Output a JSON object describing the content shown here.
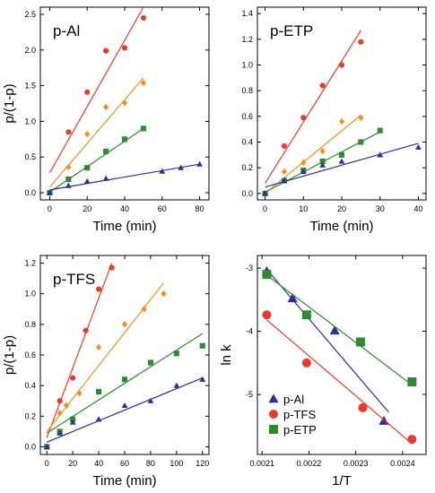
{
  "colors": {
    "p-Al_red": "#e8392b",
    "orange": "#f0901e",
    "green": "#2e8b2e",
    "blue": "#2e2e9a",
    "red": "#e8392b"
  },
  "chart_data": [
    {
      "type": "scatter",
      "panel_title": "p-Al",
      "xlabel": "Time (min)",
      "ylabel": "p/(1-p)",
      "xlim": [
        -5,
        85
      ],
      "ylim": [
        -0.1,
        2.6
      ],
      "xticks": [
        0,
        20,
        40,
        60,
        80
      ],
      "yticks": [
        0.0,
        0.5,
        1.0,
        1.5,
        2.0,
        2.5
      ],
      "ytick_labels": [
        "0.0",
        "0.5",
        "1.0",
        "1.5",
        "2.0",
        "2.5"
      ],
      "series": [
        {
          "color": "#e8392b",
          "marker": "circle",
          "x": [
            0,
            10,
            20,
            30,
            40,
            50
          ],
          "y": [
            0.0,
            0.85,
            1.41,
            1.99,
            2.03,
            2.45
          ],
          "fit": [
            [
              0,
              0.28
            ],
            [
              50,
              2.6
            ]
          ]
        },
        {
          "color": "#f0901e",
          "marker": "diamond",
          "x": [
            0,
            10,
            20,
            30,
            40,
            50
          ],
          "y": [
            0.0,
            0.36,
            0.82,
            1.2,
            1.26,
            1.54
          ],
          "fit": [
            [
              0,
              0.08
            ],
            [
              50,
              1.61
            ]
          ]
        },
        {
          "color": "#2e8b2e",
          "marker": "square",
          "x": [
            0,
            10,
            20,
            30,
            40,
            50
          ],
          "y": [
            0.0,
            0.19,
            0.35,
            0.58,
            0.75,
            0.9
          ],
          "fit": [
            [
              0,
              0.01
            ],
            [
              50,
              0.9
            ]
          ]
        },
        {
          "color": "#2e2e9a",
          "marker": "triangle",
          "x": [
            0,
            10,
            20,
            30,
            60,
            70,
            80
          ],
          "y": [
            0.0,
            0.1,
            0.16,
            0.2,
            0.3,
            0.35,
            0.4
          ],
          "fit": [
            [
              0,
              0.04
            ],
            [
              80,
              0.4
            ]
          ]
        }
      ]
    },
    {
      "type": "scatter",
      "panel_title": "p-ETP",
      "xlabel": "Time (min)",
      "ylabel": "",
      "xlim": [
        -2,
        42
      ],
      "ylim": [
        -0.05,
        1.45
      ],
      "xticks": [
        0,
        10,
        20,
        30,
        40
      ],
      "yticks": [
        0.0,
        0.2,
        0.4,
        0.6,
        0.8,
        1.0,
        1.2,
        1.4
      ],
      "ytick_labels": [
        "0.0",
        "0.2",
        "0.4",
        "0.6",
        "0.8",
        "1.0",
        "1.2",
        "1.4"
      ],
      "series": [
        {
          "color": "#e8392b",
          "marker": "circle",
          "x": [
            0,
            5,
            10,
            15,
            20,
            25
          ],
          "y": [
            0.0,
            0.37,
            0.59,
            0.84,
            1.0,
            1.18
          ],
          "fit": [
            [
              0,
              0.08
            ],
            [
              25,
              1.27
            ]
          ]
        },
        {
          "color": "#f0901e",
          "marker": "diamond",
          "x": [
            0,
            5,
            10,
            15,
            20,
            25
          ],
          "y": [
            0.0,
            0.17,
            0.24,
            0.33,
            0.56,
            0.59
          ],
          "fit": [
            [
              0,
              0.0
            ],
            [
              25,
              0.61
            ]
          ]
        },
        {
          "color": "#2e8b2e",
          "marker": "square",
          "x": [
            0,
            5,
            10,
            15,
            20,
            25,
            30
          ],
          "y": [
            0.0,
            0.1,
            0.18,
            0.25,
            0.3,
            0.4,
            0.49
          ],
          "fit": [
            [
              0,
              0.01
            ],
            [
              30,
              0.48
            ]
          ]
        },
        {
          "color": "#2e2e9a",
          "marker": "triangle",
          "x": [
            0,
            5,
            10,
            15,
            20,
            30,
            40
          ],
          "y": [
            0.0,
            0.1,
            0.17,
            0.22,
            0.25,
            0.3,
            0.36
          ],
          "fit": [
            [
              0,
              0.05
            ],
            [
              40,
              0.39
            ]
          ]
        }
      ]
    },
    {
      "type": "scatter",
      "panel_title": "p-TFS",
      "xlabel": "Time (min)",
      "ylabel": "p/(1-p)",
      "xlim": [
        -5,
        125
      ],
      "ylim": [
        -0.05,
        1.25
      ],
      "xticks": [
        0,
        20,
        40,
        60,
        80,
        100,
        120
      ],
      "yticks": [
        0.0,
        0.2,
        0.4,
        0.6,
        0.8,
        1.0,
        1.2
      ],
      "ytick_labels": [
        "0.0",
        "0.2",
        "0.4",
        "0.6",
        "0.8",
        "1.0",
        "1.2"
      ],
      "series": [
        {
          "color": "#e8392b",
          "marker": "circle",
          "x": [
            0,
            10,
            20,
            30,
            40,
            50
          ],
          "y": [
            0.0,
            0.3,
            0.45,
            0.76,
            1.03,
            1.17
          ],
          "fit": [
            [
              0,
              0.06
            ],
            [
              50,
              1.2
            ]
          ]
        },
        {
          "color": "#f0901e",
          "marker": "diamond",
          "x": [
            0,
            10,
            15,
            25,
            40,
            60,
            75,
            90
          ],
          "y": [
            0.0,
            0.22,
            0.27,
            0.35,
            0.65,
            0.8,
            0.9,
            1.0
          ],
          "fit": [
            [
              0,
              0.1
            ],
            [
              90,
              1.07
            ]
          ]
        },
        {
          "color": "#2e8b2e",
          "marker": "square",
          "x": [
            0,
            10,
            20,
            40,
            60,
            80,
            100,
            120
          ],
          "y": [
            0.0,
            0.1,
            0.18,
            0.36,
            0.44,
            0.55,
            0.61,
            0.66
          ],
          "fit": [
            [
              0,
              0.09
            ],
            [
              120,
              0.74
            ]
          ]
        },
        {
          "color": "#2e2e9a",
          "marker": "triangle",
          "x": [
            0,
            10,
            20,
            40,
            60,
            80,
            100,
            120
          ],
          "y": [
            0.0,
            0.09,
            0.16,
            0.18,
            0.27,
            0.3,
            0.4,
            0.44
          ],
          "fit": [
            [
              0,
              0.03
            ],
            [
              120,
              0.45
            ]
          ]
        }
      ]
    },
    {
      "type": "scatter",
      "panel_title": "",
      "xlabel": "1/T",
      "ylabel": "ln k",
      "xlim": [
        0.00209,
        0.00245
      ],
      "ylim": [
        -5.95,
        -2.8
      ],
      "xticks": [
        0.0021,
        0.0022,
        0.0023,
        0.0024
      ],
      "xtick_labels": [
        "0.0021",
        "0.0022",
        "0.0023",
        "0.0024"
      ],
      "yticks": [
        -3,
        -4,
        -5
      ],
      "ytick_labels": [
        "-3",
        "-4",
        "-5"
      ],
      "legend": {
        "position": "bottom-left",
        "entries": [
          "p-Al",
          "p-TFS",
          "p-ETP"
        ]
      },
      "series": [
        {
          "name": "p-Al",
          "color": "#2e2e9a",
          "marker": "triangle",
          "x": [
            0.00211,
            0.002165,
            0.002255,
            0.00236
          ],
          "y": [
            -3.05,
            -3.48,
            -3.99,
            -5.42
          ],
          "fit": [
            [
              0.00211,
              -3.02
            ],
            [
              0.00237,
              -5.28
            ]
          ]
        },
        {
          "name": "p-TFS",
          "color": "#e8392b",
          "marker": "circle",
          "x": [
            0.00211,
            0.002195,
            0.002315,
            0.00242
          ],
          "y": [
            -3.74,
            -4.5,
            -5.21,
            -5.71
          ],
          "fit": [
            [
              0.00211,
              -3.82
            ],
            [
              0.00242,
              -5.78
            ]
          ]
        },
        {
          "name": "p-ETP",
          "color": "#2e8b2e",
          "marker": "square",
          "x": [
            0.00211,
            0.002195,
            0.00231,
            0.00242
          ],
          "y": [
            -3.1,
            -3.74,
            -4.17,
            -4.8
          ],
          "fit": [
            [
              0.00211,
              -3.11
            ],
            [
              0.00242,
              -4.85
            ]
          ]
        }
      ]
    }
  ]
}
